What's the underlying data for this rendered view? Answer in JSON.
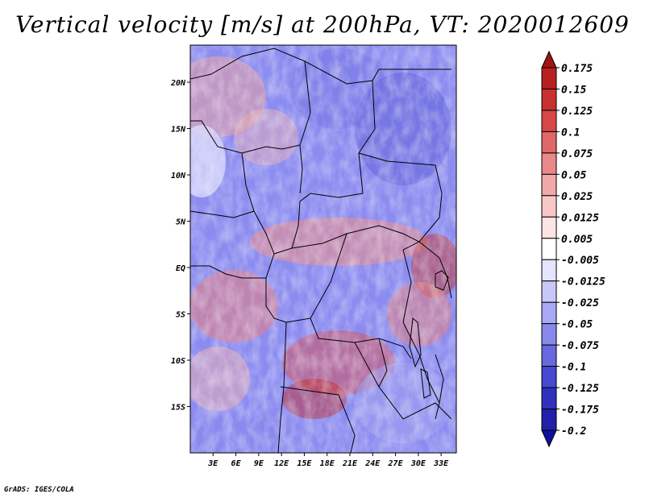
{
  "map": {
    "title": "Vertical velocity [m/s] at 200hPa, VT: 2020012609",
    "variable": "Vertical velocity",
    "units": "m/s",
    "level": "200hPa",
    "valid_time": "2020012609",
    "credit": "GrADS: IGES/COLA",
    "lon_range": [
      0,
      35
    ],
    "lat_range": [
      -20,
      24
    ],
    "lon_ticks": [
      {
        "value": 3,
        "label": "3E"
      },
      {
        "value": 6,
        "label": "6E"
      },
      {
        "value": 9,
        "label": "9E"
      },
      {
        "value": 12,
        "label": "12E"
      },
      {
        "value": 15,
        "label": "15E"
      },
      {
        "value": 18,
        "label": "18E"
      },
      {
        "value": 21,
        "label": "21E"
      },
      {
        "value": 24,
        "label": "24E"
      },
      {
        "value": 27,
        "label": "27E"
      },
      {
        "value": 30,
        "label": "30E"
      },
      {
        "value": 33,
        "label": "33E"
      }
    ],
    "lat_ticks": [
      {
        "value": 20,
        "label": "20N"
      },
      {
        "value": 15,
        "label": "15N"
      },
      {
        "value": 10,
        "label": "10N"
      },
      {
        "value": 5,
        "label": "5N"
      },
      {
        "value": 0,
        "label": "EQ"
      },
      {
        "value": -5,
        "label": "5S"
      },
      {
        "value": -10,
        "label": "10S"
      },
      {
        "value": -15,
        "label": "15S"
      }
    ],
    "colorbar": {
      "levels": [
        "0.175",
        "0.15",
        "0.125",
        "0.1",
        "0.075",
        "0.05",
        "0.025",
        "0.0125",
        "0.005",
        "-0.005",
        "-0.0125",
        "-0.025",
        "-0.05",
        "-0.075",
        "-0.1",
        "-0.125",
        "-0.175",
        "-0.2"
      ],
      "colors": [
        "#a01414",
        "#b82020",
        "#c83030",
        "#d84848",
        "#e06868",
        "#e88888",
        "#f0a8a8",
        "#f8c8c8",
        "#fce4e4",
        "#ffffff",
        "#e4e4fc",
        "#c8c8f8",
        "#a8a8f4",
        "#8888ec",
        "#6868e0",
        "#4848d0",
        "#3030c0",
        "#2020a8",
        "#1010a0"
      ]
    }
  }
}
